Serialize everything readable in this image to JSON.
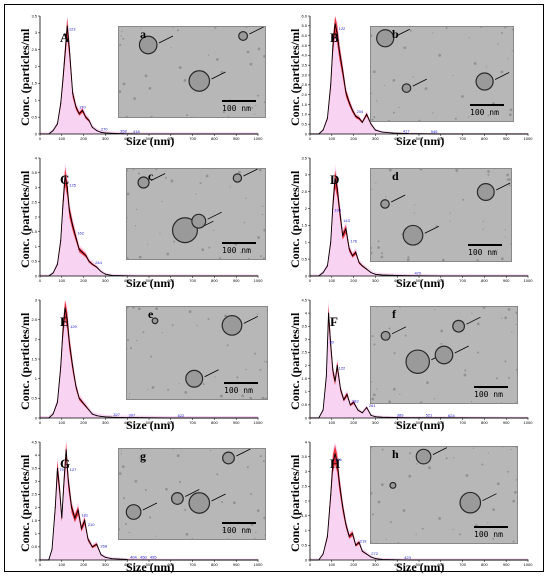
{
  "ylabel": "Conc. (particles/ml",
  "xlabel": "Size (nm)",
  "scale_label": "100 nm",
  "colors": {
    "line": "#000000",
    "error": "#e8141c",
    "band": "#f7c8ef",
    "peak_text": "#2222cc"
  },
  "xticks": [
    "0",
    "100",
    "200",
    "300",
    "400",
    "500",
    "600",
    "700",
    "800",
    "900",
    "1000"
  ],
  "chart_data": [
    {
      "panel": "A",
      "image_label": "a",
      "type": "line",
      "xlim": [
        0,
        1000
      ],
      "ylim": [
        0,
        3.5
      ],
      "yticks": [
        "0",
        "0.5",
        "1",
        "1.5",
        "2",
        "2.5",
        "3",
        "3.5"
      ],
      "x": [
        0,
        40,
        60,
        80,
        95,
        105,
        115,
        125,
        135,
        150,
        165,
        180,
        195,
        210,
        225,
        240,
        260,
        280,
        300,
        330,
        380,
        450,
        600,
        1000
      ],
      "y": [
        0,
        0,
        0.1,
        0.3,
        0.9,
        1.6,
        2.4,
        3.2,
        2.5,
        1.2,
        0.8,
        0.6,
        0.7,
        0.5,
        0.4,
        0.2,
        0.1,
        0.05,
        0.03,
        0.02,
        0.01,
        0,
        0,
        0
      ],
      "peaks": [
        "123",
        "170",
        "270",
        "358",
        "418"
      ]
    },
    {
      "panel": "B",
      "image_label": "b",
      "type": "line",
      "xlim": [
        0,
        1000
      ],
      "ylim": [
        0,
        6.0
      ],
      "yticks": [
        "0",
        "0.5",
        "1.0",
        "1.5",
        "2.0",
        "2.5",
        "3.0",
        "3.5",
        "4.0",
        "4.5",
        "5.0",
        "5.5",
        "6.0"
      ],
      "x": [
        0,
        40,
        60,
        80,
        95,
        105,
        115,
        125,
        135,
        150,
        165,
        180,
        195,
        210,
        225,
        240,
        260,
        280,
        300,
        330,
        380,
        450,
        600,
        1000
      ],
      "y": [
        0,
        0,
        0.2,
        0.8,
        2.5,
        4.5,
        5.6,
        5.1,
        4.2,
        3.2,
        2.1,
        1.6,
        1.2,
        0.9,
        0.8,
        0.6,
        1.0,
        0.5,
        0.2,
        0.1,
        0.05,
        0.02,
        0,
        0
      ],
      "peaks": [
        "122",
        "204",
        "417",
        "545"
      ]
    },
    {
      "panel": "C",
      "image_label": "c",
      "type": "line",
      "xlim": [
        0,
        1000
      ],
      "ylim": [
        0,
        4.0
      ],
      "yticks": [
        "0",
        "0.5",
        "1",
        "1.5",
        "2",
        "2.5",
        "3",
        "3.5",
        "4"
      ],
      "x": [
        0,
        40,
        60,
        80,
        95,
        105,
        115,
        125,
        135,
        150,
        165,
        180,
        195,
        210,
        225,
        240,
        260,
        280,
        300,
        330,
        380,
        450,
        600,
        1000
      ],
      "y": [
        0,
        0,
        0.1,
        0.4,
        1.2,
        2.4,
        3.4,
        3.0,
        2.2,
        1.7,
        1.3,
        0.9,
        0.8,
        0.7,
        0.5,
        0.4,
        0.3,
        0.15,
        0.06,
        0.02,
        0.01,
        0,
        0,
        0
      ],
      "peaks": [
        "125",
        "162",
        "244"
      ]
    },
    {
      "panel": "D",
      "image_label": "d",
      "type": "line",
      "xlim": [
        0,
        1000
      ],
      "ylim": [
        0,
        3.5
      ],
      "yticks": [
        "0",
        "0.5",
        "1",
        "1.5",
        "2",
        "2.5",
        "3",
        "3.5"
      ],
      "x": [
        0,
        40,
        60,
        80,
        95,
        105,
        115,
        125,
        135,
        150,
        165,
        180,
        195,
        210,
        225,
        240,
        260,
        280,
        300,
        330,
        380,
        450,
        600,
        1000
      ],
      "y": [
        0,
        0,
        0.1,
        0.3,
        1.0,
        2.1,
        2.9,
        2.6,
        2.0,
        1.2,
        1.4,
        0.8,
        0.6,
        0.7,
        0.4,
        0.3,
        0.2,
        0.1,
        0.05,
        0.03,
        0.02,
        0.01,
        0,
        0
      ],
      "peaks": [
        "103",
        "143",
        "176",
        "470"
      ]
    },
    {
      "panel": "E",
      "image_label": "e",
      "type": "line",
      "xlim": [
        0,
        1000
      ],
      "ylim": [
        0,
        3.0
      ],
      "yticks": [
        "0",
        "0.5",
        "1",
        "1.5",
        "2",
        "2.5",
        "3"
      ],
      "x": [
        0,
        40,
        60,
        80,
        95,
        105,
        115,
        125,
        135,
        150,
        165,
        180,
        195,
        210,
        225,
        240,
        260,
        280,
        300,
        330,
        380,
        450,
        600,
        1000
      ],
      "y": [
        0,
        0,
        0.1,
        0.4,
        1.3,
        2.2,
        2.8,
        2.5,
        1.9,
        1.3,
        0.8,
        0.5,
        0.4,
        0.3,
        0.2,
        0.1,
        0.06,
        0.04,
        0.03,
        0.02,
        0.01,
        0.01,
        0,
        0
      ],
      "peaks": [
        "129",
        "327",
        "397",
        "622"
      ]
    },
    {
      "panel": "F",
      "image_label": "f",
      "type": "line",
      "xlim": [
        0,
        1000
      ],
      "ylim": [
        0,
        4.5
      ],
      "yticks": [
        "0",
        "0.5",
        "1",
        "1.5",
        "2",
        "2.5",
        "3",
        "3.5",
        "4",
        "4.5"
      ],
      "x": [
        0,
        40,
        60,
        75,
        85,
        95,
        105,
        115,
        125,
        140,
        155,
        170,
        185,
        200,
        220,
        240,
        260,
        280,
        300,
        330,
        380,
        450,
        600,
        1000
      ],
      "y": [
        0,
        0,
        0.3,
        1.6,
        4.0,
        2.8,
        1.8,
        1.4,
        2.0,
        1.1,
        0.7,
        0.9,
        0.5,
        0.6,
        0.3,
        0.2,
        0.4,
        0.1,
        0.05,
        0.03,
        0.02,
        0.01,
        0.01,
        0
      ],
      "peaks": [
        "80",
        "122",
        "183",
        "261",
        "389",
        "521",
        "624"
      ]
    },
    {
      "panel": "G",
      "image_label": "g",
      "type": "line",
      "xlim": [
        0,
        1000
      ],
      "ylim": [
        0,
        4.5
      ],
      "yticks": [
        "0",
        "0.5",
        "1",
        "1.5",
        "2",
        "2.5",
        "3",
        "3.5",
        "4",
        "4.5"
      ],
      "x": [
        0,
        40,
        55,
        70,
        80,
        90,
        100,
        110,
        120,
        130,
        145,
        160,
        175,
        190,
        205,
        220,
        240,
        260,
        280,
        300,
        330,
        400,
        600,
        1000
      ],
      "y": [
        0,
        0,
        0.4,
        2.0,
        3.5,
        2.7,
        1.6,
        3.0,
        4.2,
        3.0,
        2.0,
        1.6,
        1.9,
        1.2,
        1.5,
        0.8,
        0.5,
        0.6,
        0.2,
        0.1,
        0.05,
        0.02,
        0,
        0
      ],
      "peaks": [
        "79",
        "127",
        "181",
        "210",
        "268",
        "404",
        "450",
        "495"
      ]
    },
    {
      "panel": "H",
      "image_label": "h",
      "type": "line",
      "xlim": [
        0,
        1000
      ],
      "ylim": [
        0,
        4.0
      ],
      "yticks": [
        "0",
        "0.5",
        "1",
        "1.5",
        "2",
        "2.5",
        "3",
        "3.5",
        "4"
      ],
      "x": [
        0,
        40,
        60,
        80,
        95,
        105,
        115,
        125,
        135,
        150,
        165,
        180,
        195,
        210,
        225,
        240,
        260,
        280,
        300,
        330,
        380,
        450,
        600,
        1000
      ],
      "y": [
        0,
        0,
        0.2,
        0.8,
        2.2,
        3.3,
        3.6,
        3.3,
        2.6,
        1.8,
        1.2,
        0.8,
        0.9,
        0.5,
        0.6,
        0.3,
        0.2,
        0.1,
        0.05,
        0.02,
        0.01,
        0,
        0,
        0
      ],
      "peaks": [
        "106",
        "219",
        "272",
        "423"
      ]
    }
  ]
}
